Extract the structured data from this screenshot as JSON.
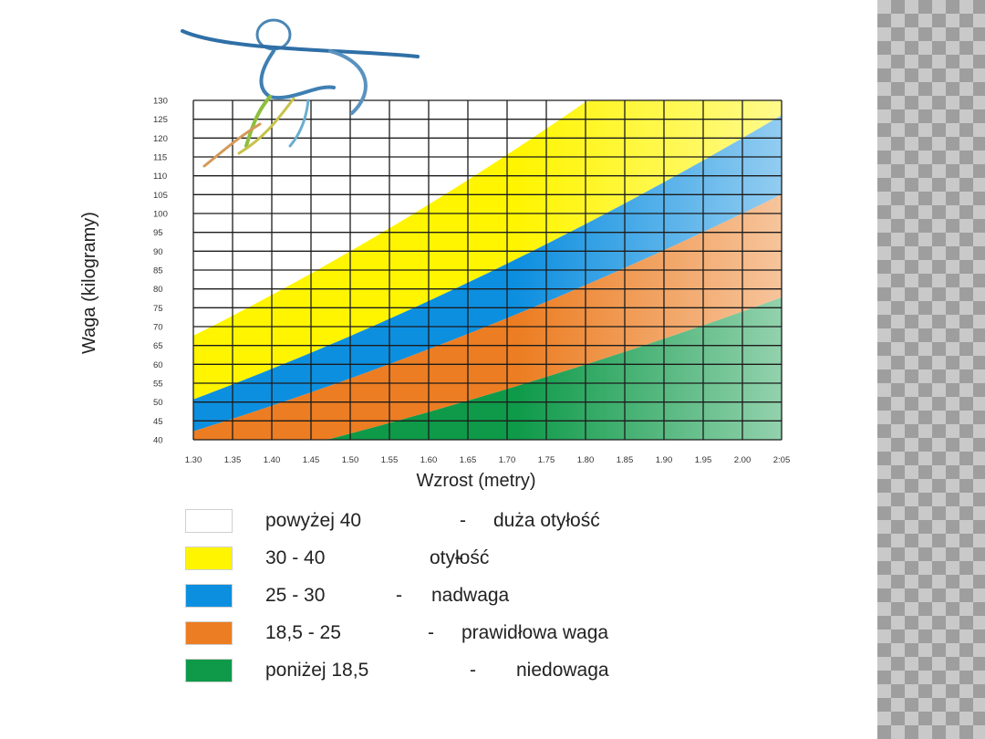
{
  "chart_data": {
    "type": "area",
    "xlabel": "Wzrost (metry)",
    "ylabel": "Waga (kilogramy)",
    "xlim": [
      1.3,
      2.05
    ],
    "ylim": [
      40,
      130
    ],
    "x_ticks": [
      "1.30",
      "1.35",
      "1.40",
      "1.45",
      "1.50",
      "1.55",
      "1.60",
      "1.65",
      "1.70",
      "1.75",
      "1.80",
      "1.85",
      "1.90",
      "1.95",
      "2.00",
      "2:05"
    ],
    "y_ticks": [
      "40",
      "45",
      "50",
      "55",
      "60",
      "65",
      "70",
      "75",
      "80",
      "85",
      "90",
      "95",
      "100",
      "105",
      "110",
      "115",
      "120",
      "125",
      "130"
    ],
    "grid": true,
    "bmi_bands": [
      {
        "range": "powyżej 40",
        "description": "duża otyłość",
        "color": "#ffffff",
        "bmi_min": 40,
        "bmi_max": null
      },
      {
        "range": "30 - 40",
        "description": "otyłość",
        "color": "#fff500",
        "bmi_min": 30,
        "bmi_max": 40
      },
      {
        "range": "25 - 30",
        "description": "nadwaga",
        "color": "#0d8fe0",
        "bmi_min": 25,
        "bmi_max": 30
      },
      {
        "range": "18,5 - 25",
        "description": "prawidłowa waga",
        "color": "#ec7d22",
        "bmi_min": 18.5,
        "bmi_max": 25
      },
      {
        "range": "poniżej 18,5",
        "description": "niedowaga",
        "color": "#0e9a49",
        "bmi_min": null,
        "bmi_max": 18.5
      }
    ],
    "legend_placement": "bottom"
  },
  "legend_dash": "-",
  "logo_icon": "running-figure-icon"
}
